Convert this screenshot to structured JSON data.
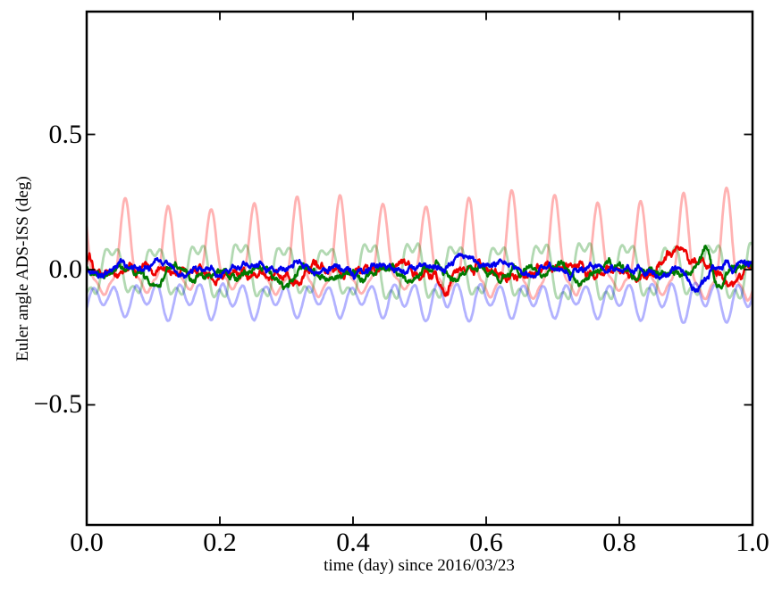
{
  "figure": {
    "background": "#ffffff",
    "axis_color": "#000000"
  },
  "chart_data": {
    "type": "line",
    "title": "",
    "xlabel": "time (day) since 2016/03/23",
    "ylabel": "Euler angle ADS-ISS (deg)",
    "xlim": [
      0.0,
      1.0
    ],
    "ylim": [
      -0.944,
      0.954
    ],
    "xticks": [
      0.0,
      0.2,
      0.4,
      0.6,
      0.8,
      1.0
    ],
    "xtick_labels": [
      "0.0",
      "0.2",
      "0.4",
      "0.6",
      "0.8",
      "1.0"
    ],
    "yticks": [
      0.5,
      0.0,
      -0.5
    ],
    "ytick_labels": [
      "0.5",
      "0.0",
      "−0.5"
    ],
    "grid": false,
    "legend": null,
    "orbit_period_day": 0.0645,
    "series": [
      {
        "id": "red-pale",
        "color": "#ff0000",
        "opacity": 0.3,
        "linewidth": 2.8,
        "seed": 3,
        "points": 1200,
        "mean": 0.03,
        "amp_trend": 0.18,
        "mod": {
          "period": 0.31,
          "depth": 0.12,
          "phase": 1.0
        },
        "noise": 0.004,
        "damp": 0.9,
        "components": [
          {
            "period": 0.0645,
            "amp": 0.135,
            "phase": 2.204
          },
          {
            "period": 0.03225,
            "amp": 0.05,
            "phase": 2.837
          },
          {
            "period": 0.0215,
            "amp": 0.025,
            "phase": 3.471
          }
        ],
        "events": []
      },
      {
        "id": "green-pale",
        "color": "#008000",
        "opacity": 0.3,
        "linewidth": 2.8,
        "seed": 5,
        "points": 1200,
        "mean": -0.005,
        "amp_trend": 0.12,
        "mod": {
          "period": 0.27,
          "depth": 0.1,
          "phase": 3.0
        },
        "noise": 0.004,
        "damp": 0.9,
        "components": [
          {
            "period": 0.0645,
            "amp": 0.092,
            "phase": 4.152
          },
          {
            "period": 0.0215,
            "amp": 0.03,
            "phase": 6.173
          }
        ],
        "events": []
      },
      {
        "id": "blue-pale",
        "color": "#0000ff",
        "opacity": 0.3,
        "linewidth": 2.8,
        "seed": 7,
        "points": 1200,
        "mean": -0.11,
        "amp_trend": 0.15,
        "mod": {
          "period": 0.37,
          "depth": 0.1,
          "phase": 5.0
        },
        "noise": 0.004,
        "damp": 0.9,
        "components": [
          {
            "period": 0.03225,
            "amp": 0.046,
            "phase": 5.978
          },
          {
            "period": 0.0645,
            "amp": 0.024,
            "phase": 5.345
          }
        ],
        "events": []
      },
      {
        "id": "red-bold",
        "color": "#ee0000",
        "opacity": 1.0,
        "linewidth": 2.5,
        "seed": 101,
        "points": 1700,
        "mean": -0.006,
        "amp_trend": 0.0,
        "mod": null,
        "noise": 0.016,
        "damp": 0.955,
        "components": [
          {
            "period": 0.0645,
            "amp": 0.013,
            "phase": 5.3
          },
          {
            "period": 0.11,
            "amp": 0.008,
            "phase": 0.7
          },
          {
            "period": 0.013,
            "amp": 0.006,
            "phase": 0.5
          },
          {
            "period": 0.004,
            "amp": 0.003,
            "phase": 1.0
          }
        ],
        "events": [
          {
            "t": 0.004,
            "amp": 0.05,
            "w": 0.004
          },
          {
            "t": 0.065,
            "amp": 0.038,
            "w": 0.006
          },
          {
            "t": 0.54,
            "amp": -0.08,
            "w": 0.007
          },
          {
            "t": 0.885,
            "amp": 0.07,
            "w": 0.016
          },
          {
            "t": 0.975,
            "amp": -0.042,
            "w": 0.009
          }
        ]
      },
      {
        "id": "green-bold",
        "color": "#007a00",
        "opacity": 1.0,
        "linewidth": 2.5,
        "seed": 202,
        "points": 1700,
        "mean": -0.012,
        "amp_trend": 0.0,
        "mod": null,
        "noise": 0.013,
        "damp": 0.955,
        "components": [
          {
            "period": 0.0645,
            "amp": 0.015,
            "phase": 1.2
          },
          {
            "period": 0.09,
            "amp": 0.007,
            "phase": 2.8
          },
          {
            "period": 0.017,
            "amp": 0.005,
            "phase": 2.2
          },
          {
            "period": 0.004,
            "amp": 0.0025,
            "phase": 0.3
          }
        ],
        "events": [
          {
            "t": 0.1,
            "amp": -0.042,
            "w": 0.012
          },
          {
            "t": 0.3,
            "amp": -0.028,
            "w": 0.015
          },
          {
            "t": 0.665,
            "amp": 0.045,
            "w": 0.007
          },
          {
            "t": 0.8,
            "amp": 0.038,
            "w": 0.012
          },
          {
            "t": 0.93,
            "amp": 0.125,
            "w": 0.008
          },
          {
            "t": 0.952,
            "amp": -0.05,
            "w": 0.007
          },
          {
            "t": 0.995,
            "amp": 0.06,
            "w": 0.006
          }
        ]
      },
      {
        "id": "blue-bold",
        "color": "#0000ee",
        "opacity": 1.0,
        "linewidth": 2.5,
        "seed": 303,
        "points": 1700,
        "mean": 0.002,
        "amp_trend": 0.0,
        "mod": null,
        "noise": 0.012,
        "damp": 0.955,
        "components": [
          {
            "period": 0.0645,
            "amp": 0.011,
            "phase": 2.9
          },
          {
            "period": 0.13,
            "amp": 0.007,
            "phase": 4.5
          },
          {
            "period": 0.019,
            "amp": 0.005,
            "phase": 4.0
          },
          {
            "period": 0.004,
            "amp": 0.0025,
            "phase": 2.0
          }
        ],
        "events": [
          {
            "t": 0.035,
            "amp": -0.028,
            "w": 0.008
          },
          {
            "t": 0.58,
            "amp": 0.03,
            "w": 0.03
          },
          {
            "t": 0.915,
            "amp": -0.058,
            "w": 0.01
          },
          {
            "t": 0.985,
            "amp": 0.028,
            "w": 0.006
          }
        ]
      }
    ]
  }
}
